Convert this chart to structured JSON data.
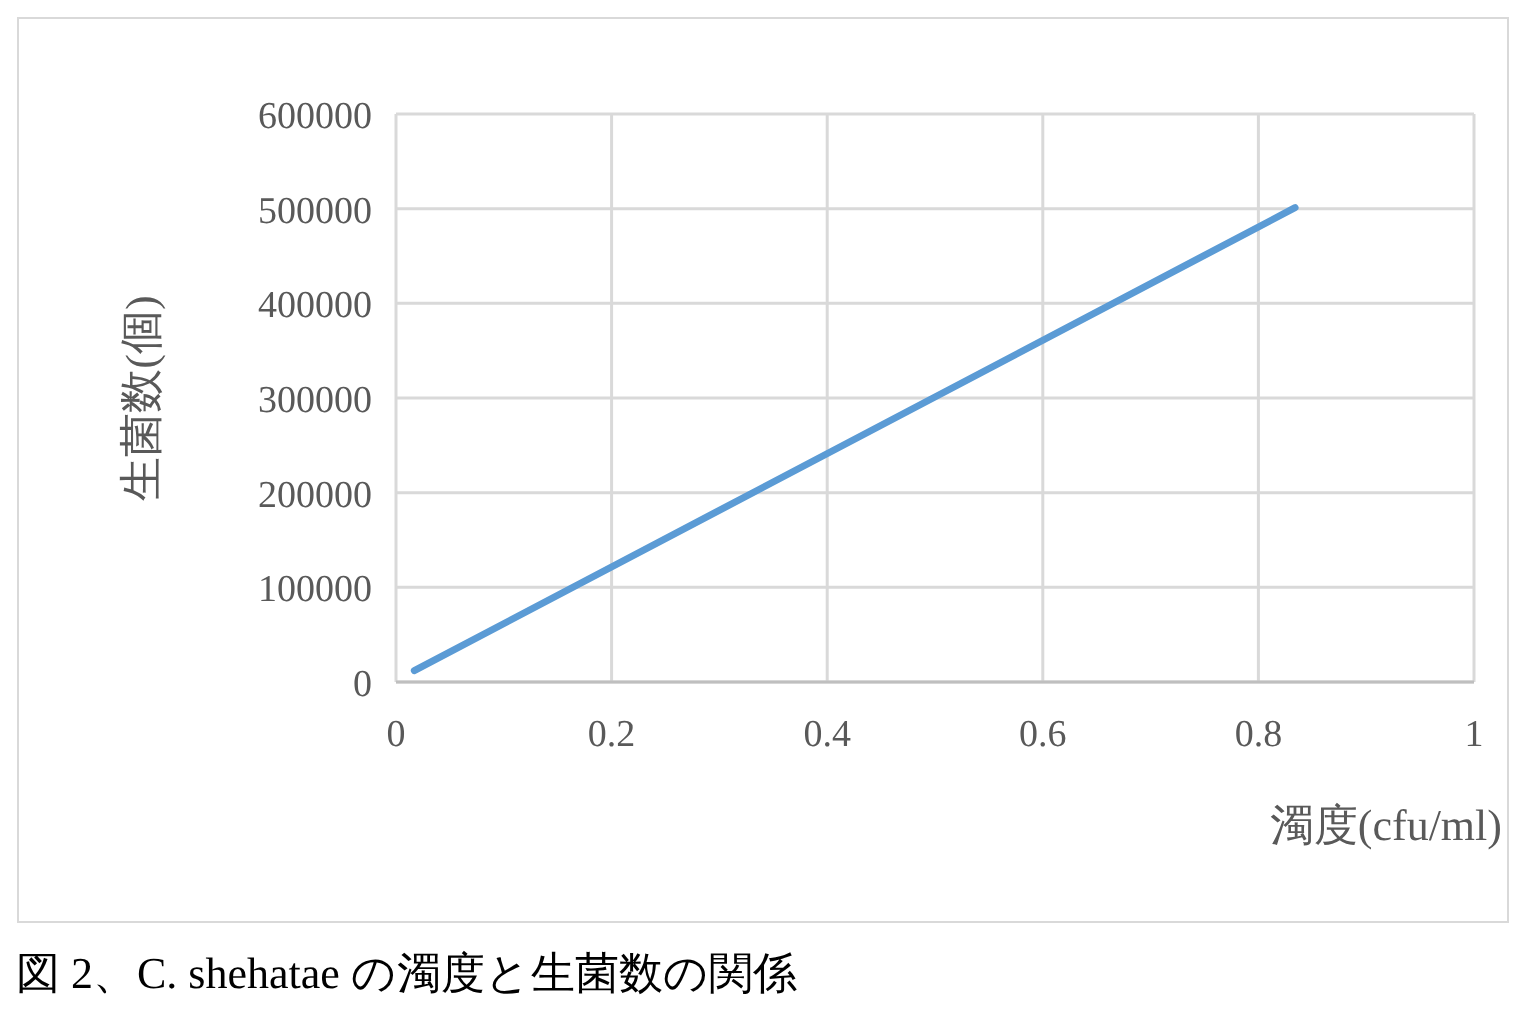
{
  "chart_data": {
    "type": "line",
    "ylabel": "生菌数(個)",
    "xlabel": "濁度(cfu/ml)",
    "annotations": [
      "図 2、C. shehatae の濁度と生菌数の関係"
    ],
    "series": [
      {
        "color": "#5b9bd5",
        "x": [
          0.017,
          0.834
        ],
        "values": [
          12000,
          501000
        ]
      }
    ],
    "xlim": [
      0,
      1
    ],
    "xticks": [
      0,
      0.2,
      0.4,
      0.6,
      0.8,
      1
    ],
    "ylim": [
      0,
      600000
    ],
    "yticks": [
      0,
      100000,
      200000,
      300000,
      400000,
      500000,
      600000
    ],
    "grid": true,
    "marker": "none",
    "line_style": "solid"
  }
}
